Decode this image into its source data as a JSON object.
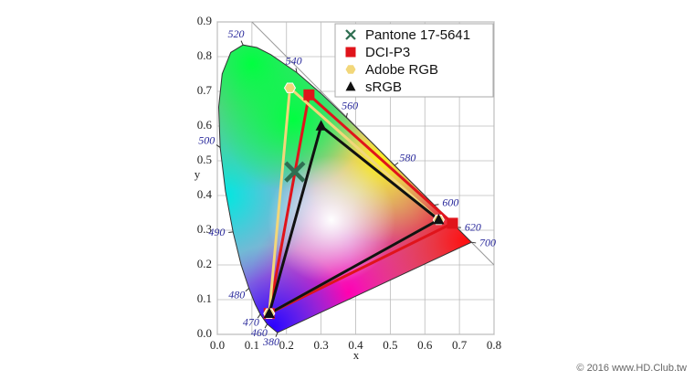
{
  "chart_data": {
    "type": "gamut",
    "x_label": "x",
    "y_label": "y",
    "xlim": [
      0,
      0.8
    ],
    "ylim": [
      0,
      0.9
    ],
    "xticks": [
      {
        "value": 0,
        "label": "0.0"
      },
      0.1,
      0.2,
      0.3,
      0.4,
      0.5,
      0.6,
      0.7,
      0.8
    ],
    "yticks": [
      {
        "value": 0,
        "label": "0.0"
      },
      0.1,
      0.2,
      0.3,
      0.4,
      0.5,
      0.6,
      0.7,
      0.8,
      0.9
    ],
    "grid": true,
    "legend": "top-right",
    "spectral_locus": {
      "x": [
        0.1741,
        0.144,
        0.1241,
        0.1096,
        0.0913,
        0.0687,
        0.0454,
        0.0235,
        0.0082,
        0.0039,
        0.0139,
        0.0389,
        0.0743,
        0.1142,
        0.1547,
        0.2296,
        0.3016,
        0.3731,
        0.4441,
        0.5125,
        0.5752,
        0.627,
        0.6915,
        0.7347
      ],
      "y": [
        0.005,
        0.0297,
        0.0578,
        0.0868,
        0.1327,
        0.2007,
        0.295,
        0.4127,
        0.5384,
        0.6548,
        0.7502,
        0.812,
        0.8338,
        0.8262,
        0.8059,
        0.7543,
        0.6923,
        0.6245,
        0.5547,
        0.4866,
        0.4242,
        0.3725,
        0.3083,
        0.2653
      ]
    },
    "wavelength_labels": {
      "labels": [
        520,
        540,
        560,
        580,
        600,
        620,
        700,
        500,
        490,
        480,
        470,
        460,
        380
      ],
      "x": [
        0.0743,
        0.2296,
        0.3731,
        0.5125,
        0.627,
        0.6915,
        0.7347,
        0.0082,
        0.0454,
        0.0913,
        0.1241,
        0.144,
        0.1741
      ],
      "y": [
        0.8338,
        0.7543,
        0.6245,
        0.4866,
        0.3725,
        0.3083,
        0.2653,
        0.5384,
        0.295,
        0.1327,
        0.0578,
        0.0297,
        0.005
      ]
    },
    "series": [
      {
        "name": "Pantone 17-5641",
        "color": "#2f6f52",
        "marker": "x",
        "x": [
          0.224
        ],
        "values": [
          0.468
        ]
      },
      {
        "name": "DCI-P3",
        "color": "#e0141b",
        "marker": "square",
        "x": [
          0.68,
          0.265,
          0.15
        ],
        "values": [
          0.32,
          0.69,
          0.06
        ]
      },
      {
        "name": "Adobe RGB",
        "color": "#f2d77a",
        "marker": "hexagon",
        "x": [
          0.64,
          0.21,
          0.15
        ],
        "values": [
          0.33,
          0.71,
          0.06
        ]
      },
      {
        "name": "sRGB",
        "color": "#111111",
        "marker": "triangle",
        "x": [
          0.64,
          0.3,
          0.15
        ],
        "values": [
          0.33,
          0.6,
          0.06
        ]
      }
    ],
    "watermark": "© 2016 www.HD.Club.tw"
  }
}
